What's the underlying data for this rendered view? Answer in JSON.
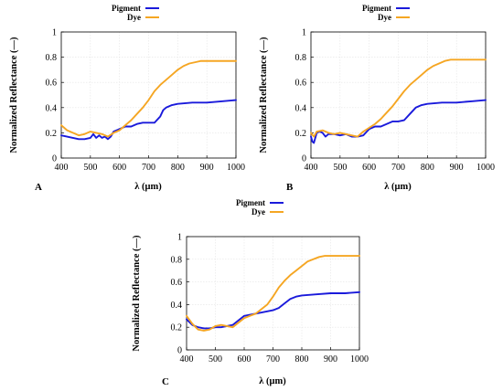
{
  "colors": {
    "pigment": "#1a1adb",
    "dye": "#f5a623"
  },
  "chart_data": [
    {
      "type": "line",
      "panel_label": "A",
      "xlabel": "λ (μm)",
      "ylabel": "Normalized Reflectance (—)",
      "xlim": [
        400,
        1000
      ],
      "ylim": [
        0,
        1
      ],
      "xticks": [
        "400",
        "500",
        "600",
        "700",
        "800",
        "900",
        "1000"
      ],
      "yticks": [
        "0",
        "0.2",
        "0.4",
        "0.6",
        "0.8",
        "1"
      ],
      "grid": true,
      "legend_position": "top-right, outside above plot",
      "series": [
        {
          "name": "Pigment",
          "color": "#1a1adb",
          "x": [
            400,
            420,
            440,
            460,
            480,
            500,
            510,
            520,
            530,
            540,
            550,
            560,
            570,
            580,
            600,
            620,
            640,
            660,
            680,
            700,
            720,
            740,
            750,
            760,
            780,
            800,
            850,
            900,
            950,
            1000
          ],
          "y": [
            0.18,
            0.17,
            0.16,
            0.15,
            0.15,
            0.16,
            0.19,
            0.16,
            0.18,
            0.16,
            0.17,
            0.15,
            0.17,
            0.21,
            0.23,
            0.25,
            0.25,
            0.27,
            0.28,
            0.28,
            0.28,
            0.33,
            0.38,
            0.4,
            0.42,
            0.43,
            0.44,
            0.44,
            0.45,
            0.46
          ]
        },
        {
          "name": "Dye",
          "color": "#f5a623",
          "x": [
            400,
            420,
            440,
            460,
            480,
            500,
            520,
            540,
            560,
            580,
            600,
            620,
            640,
            660,
            680,
            700,
            720,
            740,
            760,
            780,
            800,
            820,
            840,
            860,
            880,
            900,
            950,
            1000
          ],
          "y": [
            0.26,
            0.22,
            0.2,
            0.18,
            0.19,
            0.21,
            0.2,
            0.19,
            0.17,
            0.2,
            0.22,
            0.26,
            0.3,
            0.35,
            0.4,
            0.46,
            0.53,
            0.58,
            0.62,
            0.66,
            0.7,
            0.73,
            0.75,
            0.76,
            0.77,
            0.77,
            0.77,
            0.77
          ]
        }
      ]
    },
    {
      "type": "line",
      "panel_label": "B",
      "xlabel": "λ (μm)",
      "ylabel": "Normalized Reflectance (—)",
      "xlim": [
        400,
        1000
      ],
      "ylim": [
        0,
        1
      ],
      "xticks": [
        "400",
        "500",
        "600",
        "700",
        "800",
        "900",
        "1000"
      ],
      "yticks": [
        "0",
        "0.2",
        "0.4",
        "0.6",
        "0.8",
        "1"
      ],
      "grid": true,
      "legend_position": "top-right, outside above plot",
      "series": [
        {
          "name": "Pigment",
          "color": "#1a1adb",
          "x": [
            400,
            405,
            410,
            415,
            420,
            430,
            440,
            450,
            460,
            480,
            500,
            520,
            540,
            560,
            580,
            600,
            620,
            640,
            660,
            680,
            700,
            720,
            740,
            760,
            780,
            800,
            850,
            900,
            950,
            1000
          ],
          "y": [
            0.17,
            0.13,
            0.12,
            0.16,
            0.2,
            0.21,
            0.2,
            0.17,
            0.19,
            0.19,
            0.18,
            0.19,
            0.17,
            0.17,
            0.18,
            0.23,
            0.25,
            0.25,
            0.27,
            0.29,
            0.29,
            0.3,
            0.35,
            0.4,
            0.42,
            0.43,
            0.44,
            0.44,
            0.45,
            0.46
          ]
        },
        {
          "name": "Dye",
          "color": "#f5a623",
          "x": [
            400,
            410,
            420,
            440,
            460,
            480,
            500,
            520,
            540,
            560,
            580,
            600,
            620,
            640,
            660,
            680,
            700,
            720,
            740,
            760,
            780,
            800,
            820,
            840,
            860,
            880,
            900,
            950,
            1000
          ],
          "y": [
            0.2,
            0.17,
            0.21,
            0.22,
            0.2,
            0.19,
            0.2,
            0.19,
            0.18,
            0.17,
            0.21,
            0.24,
            0.27,
            0.31,
            0.36,
            0.41,
            0.47,
            0.53,
            0.58,
            0.62,
            0.66,
            0.7,
            0.73,
            0.75,
            0.77,
            0.78,
            0.78,
            0.78,
            0.78
          ]
        }
      ]
    },
    {
      "type": "line",
      "panel_label": "C",
      "xlabel": "λ (μm)",
      "ylabel": "Normalized Reflectance (—)",
      "xlim": [
        400,
        1000
      ],
      "ylim": [
        0,
        1
      ],
      "xticks": [
        "400",
        "500",
        "600",
        "700",
        "800",
        "900",
        "1000"
      ],
      "yticks": [
        "0",
        "0.2",
        "0.4",
        "0.6",
        "0.8",
        "1"
      ],
      "grid": true,
      "legend_position": "top-left of panel, outside above plot",
      "series": [
        {
          "name": "Pigment",
          "color": "#1a1adb",
          "x": [
            400,
            420,
            440,
            460,
            480,
            500,
            520,
            540,
            560,
            580,
            600,
            620,
            640,
            660,
            680,
            700,
            720,
            740,
            760,
            780,
            800,
            850,
            900,
            950,
            1000
          ],
          "y": [
            0.27,
            0.22,
            0.2,
            0.19,
            0.19,
            0.2,
            0.2,
            0.21,
            0.22,
            0.26,
            0.3,
            0.31,
            0.32,
            0.33,
            0.34,
            0.35,
            0.37,
            0.41,
            0.45,
            0.47,
            0.48,
            0.49,
            0.5,
            0.5,
            0.51
          ]
        },
        {
          "name": "Dye",
          "color": "#f5a623",
          "x": [
            400,
            420,
            440,
            460,
            480,
            500,
            520,
            540,
            560,
            580,
            600,
            620,
            640,
            660,
            680,
            700,
            720,
            740,
            760,
            780,
            800,
            820,
            840,
            860,
            880,
            900,
            950,
            1000
          ],
          "y": [
            0.3,
            0.23,
            0.18,
            0.17,
            0.18,
            0.21,
            0.22,
            0.21,
            0.2,
            0.24,
            0.28,
            0.3,
            0.32,
            0.36,
            0.4,
            0.47,
            0.55,
            0.61,
            0.66,
            0.7,
            0.74,
            0.78,
            0.8,
            0.82,
            0.83,
            0.83,
            0.83,
            0.83
          ]
        }
      ]
    }
  ]
}
